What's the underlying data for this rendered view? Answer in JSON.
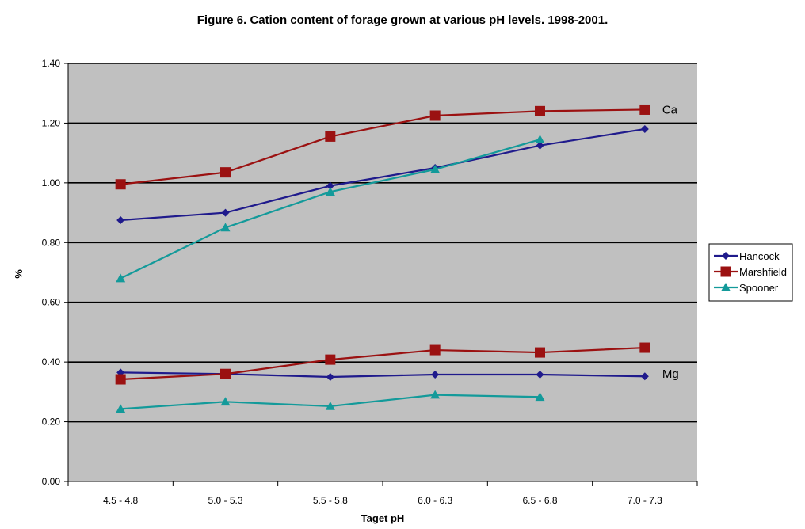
{
  "chart_data": {
    "type": "line",
    "title": "Figure 6. Cation content of forage grown at various pH levels. 1998-2001.",
    "xlabel": "Taget pH",
    "ylabel": "%",
    "categories": [
      "4.5 - 4.8",
      "5.0 - 5.3",
      "5.5 - 5.8",
      "6.0 - 6.3",
      "6.5 - 6.8",
      "7.0 - 7.3"
    ],
    "ylim": [
      0,
      1.4
    ],
    "yticks": [
      "0.00",
      "0.20",
      "0.40",
      "0.60",
      "0.80",
      "1.00",
      "1.20",
      "1.40"
    ],
    "grid": true,
    "legend_position": "right",
    "series": [
      {
        "name": "Hancock",
        "group": "Ca",
        "color": "#1f1a8c",
        "marker": "diamond",
        "values": [
          0.875,
          0.9,
          0.99,
          1.05,
          1.125,
          1.18
        ]
      },
      {
        "name": "Marshfield",
        "group": "Ca",
        "color": "#9b1111",
        "marker": "square",
        "values": [
          0.995,
          1.035,
          1.155,
          1.225,
          1.24,
          1.245
        ]
      },
      {
        "name": "Spooner",
        "group": "Ca",
        "color": "#139a9a",
        "marker": "triangle",
        "values": [
          0.68,
          0.85,
          0.97,
          1.045,
          1.145,
          null
        ]
      },
      {
        "name": "Hancock",
        "group": "Mg",
        "color": "#1f1a8c",
        "marker": "diamond",
        "values": [
          0.365,
          0.36,
          0.35,
          0.358,
          0.358,
          0.352
        ]
      },
      {
        "name": "Marshfield",
        "group": "Mg",
        "color": "#9b1111",
        "marker": "square",
        "values": [
          0.342,
          0.36,
          0.408,
          0.44,
          0.432,
          0.448
        ]
      },
      {
        "name": "Spooner",
        "group": "Mg",
        "color": "#139a9a",
        "marker": "triangle",
        "values": [
          0.243,
          0.267,
          0.252,
          0.29,
          0.283,
          null
        ]
      }
    ],
    "legend": [
      "Hancock",
      "Marshfield",
      "Spooner"
    ],
    "annotations": [
      {
        "text": "Ca",
        "category_index": 5,
        "y": 1.245
      },
      {
        "text": "Mg",
        "category_index": 5,
        "y": 0.36
      }
    ]
  }
}
